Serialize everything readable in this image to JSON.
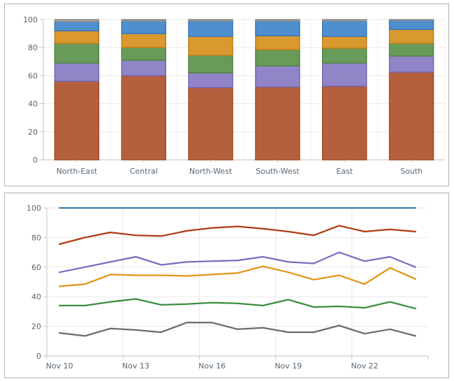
{
  "page": {
    "background": "#ffffff",
    "panel_border_color": "#b3b3b3"
  },
  "axis_style": {
    "text_color": "#5a6772",
    "axis_color": "#c2c2c2",
    "grid_color": "#e9e9e9",
    "slot_grid_color": "#f2f2f2",
    "tick_font_size": 11
  },
  "chart_data": [
    {
      "type": "bar",
      "subtype": "stacked-100",
      "title": "",
      "xlabel": "",
      "ylabel": "",
      "ylim": [
        0,
        100
      ],
      "yticks": [
        0,
        20,
        40,
        60,
        80,
        100
      ],
      "grid": true,
      "legend": false,
      "categories": [
        "North-East",
        "Central",
        "North-West",
        "South-West",
        "East",
        "South"
      ],
      "series": [
        {
          "name": "brown",
          "color": "#b5603c",
          "border": "#a54c22",
          "values": [
            56,
            60,
            51.5,
            52,
            52.5,
            62.5
          ]
        },
        {
          "name": "purple",
          "color": "#9184c7",
          "border": "#7567b3",
          "values": [
            13,
            11,
            10.5,
            15,
            16.5,
            11.5
          ]
        },
        {
          "name": "green",
          "color": "#689b59",
          "border": "#508345",
          "values": [
            14,
            9,
            12.5,
            11.5,
            10.5,
            9
          ]
        },
        {
          "name": "gold",
          "color": "#d9992f",
          "border": "#bb7e1e",
          "values": [
            9,
            10,
            13.5,
            10,
            8.5,
            10
          ]
        },
        {
          "name": "blue",
          "color": "#4e90cd",
          "border": "#3a76bc",
          "values": [
            6.5,
            9,
            11,
            10.5,
            11,
            6.5
          ]
        },
        {
          "name": "gray",
          "color": "#a2a2a2",
          "border": "#8d8d8d",
          "values": [
            1.5,
            1,
            1,
            1,
            1,
            0.5
          ]
        }
      ]
    },
    {
      "type": "line",
      "title": "",
      "xlabel": "",
      "ylabel": "",
      "ylim": [
        0,
        100
      ],
      "yticks": [
        0,
        20,
        40,
        60,
        80,
        100
      ],
      "grid": true,
      "legend": false,
      "categories": [
        "Nov 10",
        "Nov 11",
        "Nov 12",
        "Nov 13",
        "Nov 14",
        "Nov 15",
        "Nov 16",
        "Nov 17",
        "Nov 18",
        "Nov 19",
        "Nov 20",
        "Nov 21",
        "Nov 22",
        "Nov 23",
        "Nov 24"
      ],
      "xtick_labels": [
        "Nov 10",
        "Nov 13",
        "Nov 16",
        "Nov 19",
        "Nov 22"
      ],
      "xtick_indices": [
        0,
        3,
        6,
        9,
        12
      ],
      "series": [
        {
          "name": "blue",
          "color": "#3f7ca9",
          "values": [
            100,
            100,
            100,
            100,
            100,
            100,
            100,
            100,
            100,
            100,
            100,
            100,
            100,
            100,
            100
          ]
        },
        {
          "name": "red",
          "color": "#b03c13",
          "values": [
            75.5,
            80,
            83.5,
            81.5,
            81,
            84.5,
            86.5,
            87.5,
            86,
            84,
            81.5,
            88,
            84,
            85.5,
            84
          ]
        },
        {
          "name": "purple",
          "color": "#7a6bc2",
          "values": [
            56.5,
            60,
            63.5,
            67,
            61.5,
            63.5,
            64,
            64.5,
            67,
            63.5,
            62.5,
            70,
            64,
            67,
            60
          ]
        },
        {
          "name": "orange",
          "color": "#e29413",
          "values": [
            47,
            48.5,
            55,
            54.5,
            54.5,
            54,
            55,
            56,
            60.5,
            56.5,
            51.5,
            54.5,
            48.5,
            59.5,
            52
          ]
        },
        {
          "name": "green",
          "color": "#3a8e3a",
          "values": [
            34,
            34,
            36.5,
            38.5,
            34.5,
            35,
            36,
            35.5,
            34,
            38,
            33,
            33.5,
            32.5,
            36.5,
            32
          ]
        },
        {
          "name": "gray",
          "color": "#6b6b6b",
          "values": [
            15.5,
            13.5,
            18.5,
            17.5,
            16,
            22.5,
            22.5,
            18,
            19,
            16,
            16,
            20.5,
            15,
            18,
            13.5
          ]
        }
      ]
    }
  ]
}
